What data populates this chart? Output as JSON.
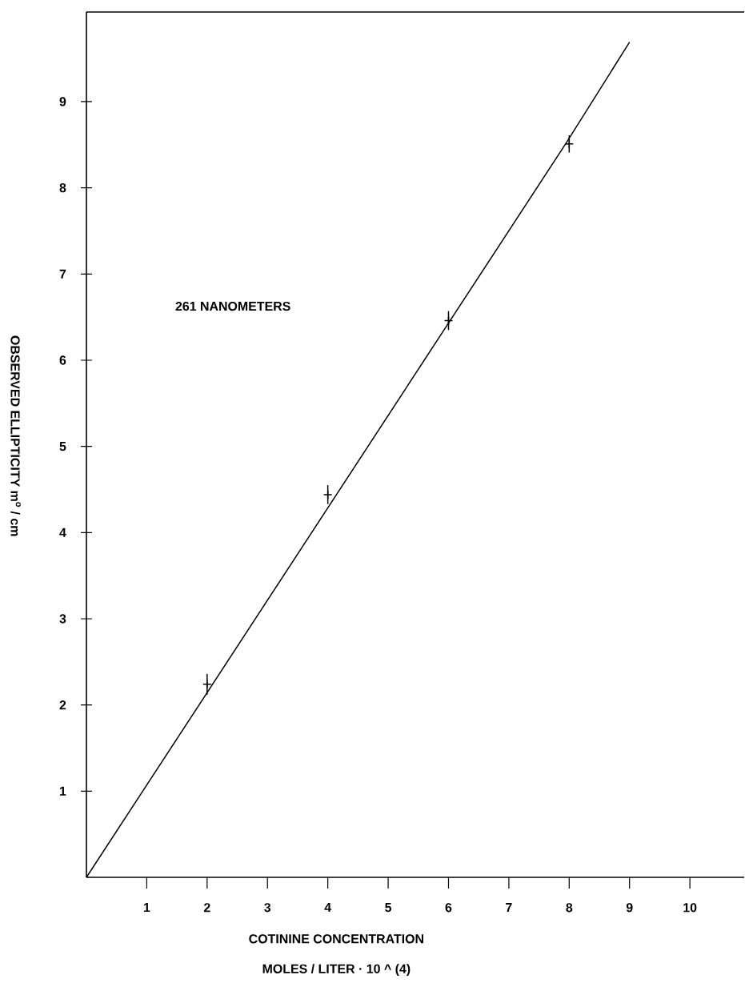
{
  "chart_data": {
    "type": "scatter",
    "xlabel": "COTININE CONCENTRATION",
    "ylabel": "OBSERVED ELLIPTICITY m$^{o}$ / cm",
    "annotations": [
      "261 NANOMETERS",
      "MOLES / LITER · 10 ^ (4)"
    ],
    "xlim": [
      0,
      10.9
    ],
    "ylim": [
      0,
      10.04
    ],
    "xticks": [
      1,
      2,
      3,
      4,
      5,
      6,
      7,
      8,
      9,
      10
    ],
    "yticks": [
      1,
      2,
      3,
      4,
      5,
      6,
      7,
      8,
      9
    ],
    "series": [
      {
        "color": "#000000",
        "marker": "cross",
        "x": [
          2,
          4,
          6,
          8
        ],
        "values": [
          2.24,
          4.44,
          6.46,
          8.51
        ],
        "errors": [
          0.12,
          0.11,
          0.11,
          0.1
        ]
      },
      {
        "type": "line",
        "color": "#000000",
        "marker": "none",
        "line_style": "solid",
        "x": [
          0,
          7.95,
          9.0
        ],
        "values": [
          0,
          8.52,
          9.69
        ]
      }
    ]
  }
}
